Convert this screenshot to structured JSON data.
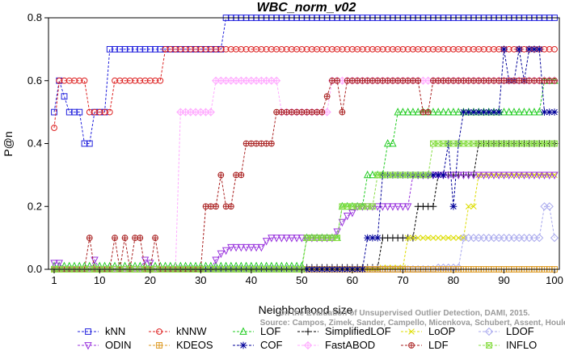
{
  "chart_data": {
    "type": "line",
    "title": "WBC_norm_v02",
    "xlabel": "Neighborhood size",
    "ylabel": "P@n",
    "xlim": [
      1,
      100
    ],
    "ylim": [
      0,
      0.8
    ],
    "xticks": [
      1,
      10,
      20,
      30,
      40,
      50,
      60,
      70,
      80,
      90,
      100
    ],
    "yticks": [
      0.0,
      0.2,
      0.4,
      0.6,
      0.8
    ],
    "tick_labels_x": [
      "1",
      "10",
      "20",
      "30",
      "40",
      "50",
      "60",
      "70",
      "80",
      "90",
      "100"
    ],
    "tick_labels_y": [
      "0.0",
      "0.2",
      "0.4",
      "0.6",
      "0.8"
    ],
    "grid": false,
    "legend_position": "bottom",
    "watermark": [
      "Source: Campos, Zimek, Sander, Campello, Micenkova, Schubert, Assent, Houle",
      "On the Evaluation of Unsupervised Outlier Detection, DAMI, 2015."
    ],
    "series": [
      {
        "name": "kNN",
        "color": "#2222dd",
        "marker": "square",
        "points": [
          [
            1,
            0.5
          ],
          [
            2,
            0.6
          ],
          [
            4,
            0.5
          ],
          [
            6,
            0.5
          ],
          [
            7,
            0.4
          ],
          [
            8,
            0.4
          ],
          [
            9,
            0.5
          ],
          [
            11,
            0.5
          ],
          [
            12,
            0.7
          ],
          [
            34,
            0.7
          ],
          [
            35,
            0.8
          ],
          [
            100,
            0.8
          ]
        ]
      },
      {
        "name": "kNNW",
        "color": "#dd2222",
        "marker": "circle",
        "points": [
          [
            1,
            0.45
          ],
          [
            2,
            0.6
          ],
          [
            7,
            0.6
          ],
          [
            8,
            0.5
          ],
          [
            12,
            0.5
          ],
          [
            13,
            0.6
          ],
          [
            22,
            0.6
          ],
          [
            23,
            0.7
          ],
          [
            100,
            0.7
          ]
        ]
      },
      {
        "name": "LOF",
        "color": "#22cc22",
        "marker": "triangle",
        "points": [
          [
            1,
            0.01
          ],
          [
            50,
            0.01
          ],
          [
            51,
            0.1
          ],
          [
            57,
            0.1
          ],
          [
            58,
            0.2
          ],
          [
            62,
            0.2
          ],
          [
            63,
            0.3
          ],
          [
            66,
            0.3
          ],
          [
            67,
            0.4
          ],
          [
            68,
            0.4
          ],
          [
            69,
            0.5
          ],
          [
            97,
            0.5
          ],
          [
            98,
            0.6
          ],
          [
            100,
            0.6
          ]
        ]
      },
      {
        "name": "SimplifiedLOF",
        "color": "#000000",
        "marker": "plus",
        "points": [
          [
            1,
            0.0
          ],
          [
            50,
            0.0
          ],
          [
            51,
            0.005
          ],
          [
            65,
            0.005
          ],
          [
            66,
            0.1
          ],
          [
            72,
            0.1
          ],
          [
            73,
            0.2
          ],
          [
            76,
            0.2
          ],
          [
            77,
            0.3
          ],
          [
            84,
            0.3
          ],
          [
            85,
            0.4
          ],
          [
            100,
            0.4
          ]
        ]
      },
      {
        "name": "LoOP",
        "color": "#dddd00",
        "marker": "x",
        "points": [
          [
            1,
            0.0
          ],
          [
            65,
            0.0
          ],
          [
            66,
            0.005
          ],
          [
            70,
            0.005
          ],
          [
            71,
            0.1
          ],
          [
            82,
            0.1
          ],
          [
            83,
            0.2
          ],
          [
            84,
            0.2
          ],
          [
            85,
            0.3
          ],
          [
            100,
            0.3
          ]
        ]
      },
      {
        "name": "LDOF",
        "color": "#aaaaee",
        "marker": "diamond",
        "points": [
          [
            1,
            0.0
          ],
          [
            76,
            0.0
          ],
          [
            77,
            0.005
          ],
          [
            81,
            0.005
          ],
          [
            82,
            0.1
          ],
          [
            97,
            0.1
          ],
          [
            98,
            0.2
          ],
          [
            99,
            0.2
          ],
          [
            100,
            0.1
          ]
        ]
      },
      {
        "name": "ODIN",
        "color": "#9933dd",
        "marker": "triangle-down",
        "points": [
          [
            1,
            0.02
          ],
          [
            2,
            0.02
          ],
          [
            3,
            0.0
          ],
          [
            8,
            0.0
          ],
          [
            9,
            0.03
          ],
          [
            10,
            0.0
          ],
          [
            18,
            0.0
          ],
          [
            19,
            0.03
          ],
          [
            20,
            0.02
          ],
          [
            21,
            0.0
          ],
          [
            32,
            0.0
          ],
          [
            33,
            0.03
          ],
          [
            34,
            0.05
          ],
          [
            35,
            0.06
          ],
          [
            36,
            0.07
          ],
          [
            42,
            0.07
          ],
          [
            43,
            0.09
          ],
          [
            44,
            0.1
          ],
          [
            56,
            0.1
          ],
          [
            57,
            0.12
          ],
          [
            58,
            0.15
          ],
          [
            59,
            0.17
          ],
          [
            60,
            0.18
          ],
          [
            61,
            0.2
          ],
          [
            71,
            0.2
          ],
          [
            72,
            0.3
          ],
          [
            100,
            0.3
          ]
        ]
      },
      {
        "name": "KDEOS",
        "color": "#dd9922",
        "marker": "square-cross",
        "points": [
          [
            1,
            0.0
          ],
          [
            100,
            0.0
          ]
        ]
      },
      {
        "name": "COF",
        "color": "#000099",
        "marker": "star",
        "points": [
          [
            1,
            0.0
          ],
          [
            62,
            0.0
          ],
          [
            63,
            0.1
          ],
          [
            65,
            0.1
          ],
          [
            66,
            0.3
          ],
          [
            78,
            0.3
          ],
          [
            79,
            0.4
          ],
          [
            80,
            0.2
          ],
          [
            81,
            0.4
          ],
          [
            82,
            0.5
          ],
          [
            89,
            0.5
          ],
          [
            90,
            0.7
          ],
          [
            91,
            0.6
          ],
          [
            92,
            0.6
          ],
          [
            93,
            0.7
          ],
          [
            94,
            0.6
          ],
          [
            95,
            0.7
          ],
          [
            97,
            0.7
          ],
          [
            98,
            0.5
          ],
          [
            100,
            0.5
          ]
        ]
      },
      {
        "name": "FastABOD",
        "color": "#ffaaff",
        "marker": "diamond-cross",
        "points": [
          [
            1,
            0.0
          ],
          [
            25,
            0.0
          ],
          [
            26,
            0.5
          ],
          [
            32,
            0.5
          ],
          [
            33,
            0.6
          ],
          [
            45,
            0.6
          ],
          [
            46,
            0.5
          ],
          [
            55,
            0.5
          ],
          [
            56,
            0.6
          ],
          [
            100,
            0.6
          ]
        ]
      },
      {
        "name": "LDF",
        "color": "#aa2222",
        "marker": "circle-plus",
        "points": [
          [
            1,
            0.0
          ],
          [
            7,
            0.0
          ],
          [
            8,
            0.1
          ],
          [
            9,
            0.0
          ],
          [
            12,
            0.0
          ],
          [
            13,
            0.1
          ],
          [
            14,
            0.0
          ],
          [
            15,
            0.1
          ],
          [
            16,
            0.0
          ],
          [
            17,
            0.1
          ],
          [
            18,
            0.1
          ],
          [
            19,
            0.0
          ],
          [
            20,
            0.0
          ],
          [
            21,
            0.1
          ],
          [
            22,
            0.0
          ],
          [
            30,
            0.0
          ],
          [
            31,
            0.2
          ],
          [
            33,
            0.2
          ],
          [
            34,
            0.3
          ],
          [
            35,
            0.2
          ],
          [
            36,
            0.2
          ],
          [
            37,
            0.3
          ],
          [
            38,
            0.3
          ],
          [
            39,
            0.4
          ],
          [
            44,
            0.4
          ],
          [
            45,
            0.5
          ],
          [
            52,
            0.5
          ],
          [
            53,
            0.5
          ],
          [
            54,
            0.5
          ],
          [
            55,
            0.55
          ],
          [
            56,
            0.6
          ],
          [
            57,
            0.6
          ],
          [
            58,
            0.5
          ],
          [
            59,
            0.6
          ],
          [
            73,
            0.6
          ],
          [
            74,
            0.5
          ],
          [
            75,
            0.5
          ],
          [
            76,
            0.6
          ],
          [
            100,
            0.6
          ]
        ]
      },
      {
        "name": "INFLO",
        "color": "#88dd44",
        "marker": "square-x",
        "points": [
          [
            1,
            0.0
          ],
          [
            50,
            0.0
          ],
          [
            51,
            0.1
          ],
          [
            57,
            0.1
          ],
          [
            58,
            0.2
          ],
          [
            64,
            0.2
          ],
          [
            65,
            0.3
          ],
          [
            75,
            0.3
          ],
          [
            76,
            0.4
          ],
          [
            100,
            0.4
          ]
        ]
      }
    ]
  }
}
